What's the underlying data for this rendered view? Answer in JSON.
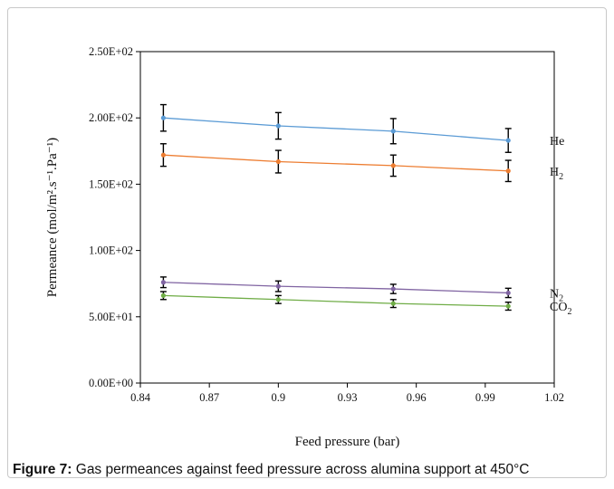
{
  "figure": {
    "caption_label": "Figure 7:",
    "caption_text": " Gas permeances against feed pressure across alumina support at 450°C"
  },
  "chart_data": {
    "type": "line",
    "xlabel": "Feed pressure (bar)",
    "ylabel": "Permeance (mol/m².s⁻¹.Pa⁻¹)",
    "xlim": [
      0.84,
      1.02
    ],
    "ylim": [
      0,
      250
    ],
    "x_ticks": [
      0.84,
      0.87,
      0.9,
      0.93,
      0.96,
      0.99,
      1.02
    ],
    "x_tick_labels": [
      "0.84",
      "0.87",
      "0.9",
      "0.93",
      "0.96",
      "0.99",
      "1.02"
    ],
    "y_ticks": [
      0,
      50,
      100,
      150,
      200,
      250
    ],
    "y_tick_labels": [
      "0.00E+00",
      "5.00E+01",
      "1.00E+02",
      "1.50E+02",
      "2.00E+02",
      "2.50E+02"
    ],
    "grid": false,
    "x": [
      0.85,
      0.9,
      0.95,
      1.0
    ],
    "series": [
      {
        "name": "He",
        "label_main": "He",
        "label_sub": "",
        "color": "#5b9bd5",
        "values": [
          200,
          194,
          190,
          183
        ],
        "errors": [
          10,
          10,
          9.5,
          9
        ]
      },
      {
        "name": "H2",
        "label_main": "H",
        "label_sub": "2",
        "color": "#ed7d31",
        "values": [
          172,
          167,
          164,
          160
        ],
        "errors": [
          8.5,
          8.5,
          8,
          8
        ]
      },
      {
        "name": "N2",
        "label_main": "N",
        "label_sub": "2",
        "color": "#8064a2",
        "values": [
          76,
          73,
          71,
          68
        ],
        "errors": [
          4,
          4,
          3.5,
          3.5
        ]
      },
      {
        "name": "CO2",
        "label_main": "CO",
        "label_sub": "2",
        "color": "#70ad47",
        "values": [
          66,
          63,
          60,
          58
        ],
        "errors": [
          3,
          3,
          3,
          3
        ]
      }
    ]
  }
}
